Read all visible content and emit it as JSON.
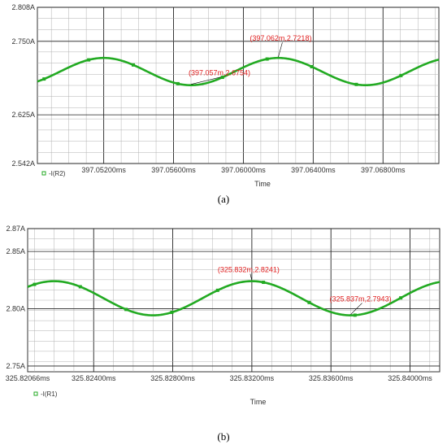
{
  "colors": {
    "series": "#22aa22",
    "annotation": "#e02020",
    "grid": "#b0b0b0",
    "axis": "#333333",
    "legend_marker": "#22aa22"
  },
  "chart_data": [
    {
      "type": "line",
      "caption": "(a)",
      "xlabel": "Time",
      "x_unit": "ms",
      "y_unit": "A",
      "xlim": [
        397.0482,
        397.0712
      ],
      "ylim": [
        2.542,
        2.808
      ],
      "y_ticks": [
        "2.808A",
        "2.750A",
        "2.625A",
        "2.542A"
      ],
      "y_tick_values": [
        2.808,
        2.75,
        2.625,
        2.542
      ],
      "x_ticks": [
        "397.05200ms",
        "397.05600ms",
        "397.06000ms",
        "397.06400ms",
        "397.06800ms"
      ],
      "x_tick_values": [
        397.052,
        397.056,
        397.06,
        397.064,
        397.068
      ],
      "grid": true,
      "legend": {
        "position": "bottom-left",
        "entries": [
          "-I(R2)"
        ]
      },
      "series": [
        {
          "name": "-I(R2)",
          "mean": 2.6986,
          "amplitude": 0.0232,
          "period": 0.01,
          "peak_x": 397.052,
          "x": [
            397.0482,
            397.0712
          ]
        }
      ],
      "annotations": [
        {
          "text": "(397.057m,2.6754)",
          "x": 397.057,
          "y": 2.6754
        },
        {
          "text": "(397.062m,2.7218)",
          "x": 397.062,
          "y": 2.7218
        }
      ]
    },
    {
      "type": "line",
      "caption": "(b)",
      "xlabel": "Time",
      "x_unit": "ms",
      "y_unit": "A",
      "xlim": [
        325.82066,
        325.8415
      ],
      "ylim": [
        2.745,
        2.87
      ],
      "y_ticks": [
        "2.87A",
        "2.85A",
        "2.80A",
        "2.75A"
      ],
      "y_tick_values": [
        2.87,
        2.85,
        2.8,
        2.75
      ],
      "x_ticks": [
        "325.82066ms",
        "325.82400ms",
        "325.82800ms",
        "325.83200ms",
        "325.83600ms",
        "325.84000ms"
      ],
      "x_tick_values": [
        325.82066,
        325.824,
        325.828,
        325.832,
        325.836,
        325.84
      ],
      "grid": true,
      "legend": {
        "position": "bottom-left",
        "entries": [
          "-I(R1)"
        ]
      },
      "series": [
        {
          "name": "-I(R1)",
          "mean": 2.8092,
          "amplitude": 0.0149,
          "period": 0.01,
          "peak_x": 325.832,
          "x": [
            325.82066,
            325.8415
          ]
        }
      ],
      "annotations": [
        {
          "text": "(325.832m,2.8241)",
          "x": 325.832,
          "y": 2.8241
        },
        {
          "text": "(325.837m,2.7943)",
          "x": 325.837,
          "y": 2.7943
        }
      ]
    }
  ]
}
